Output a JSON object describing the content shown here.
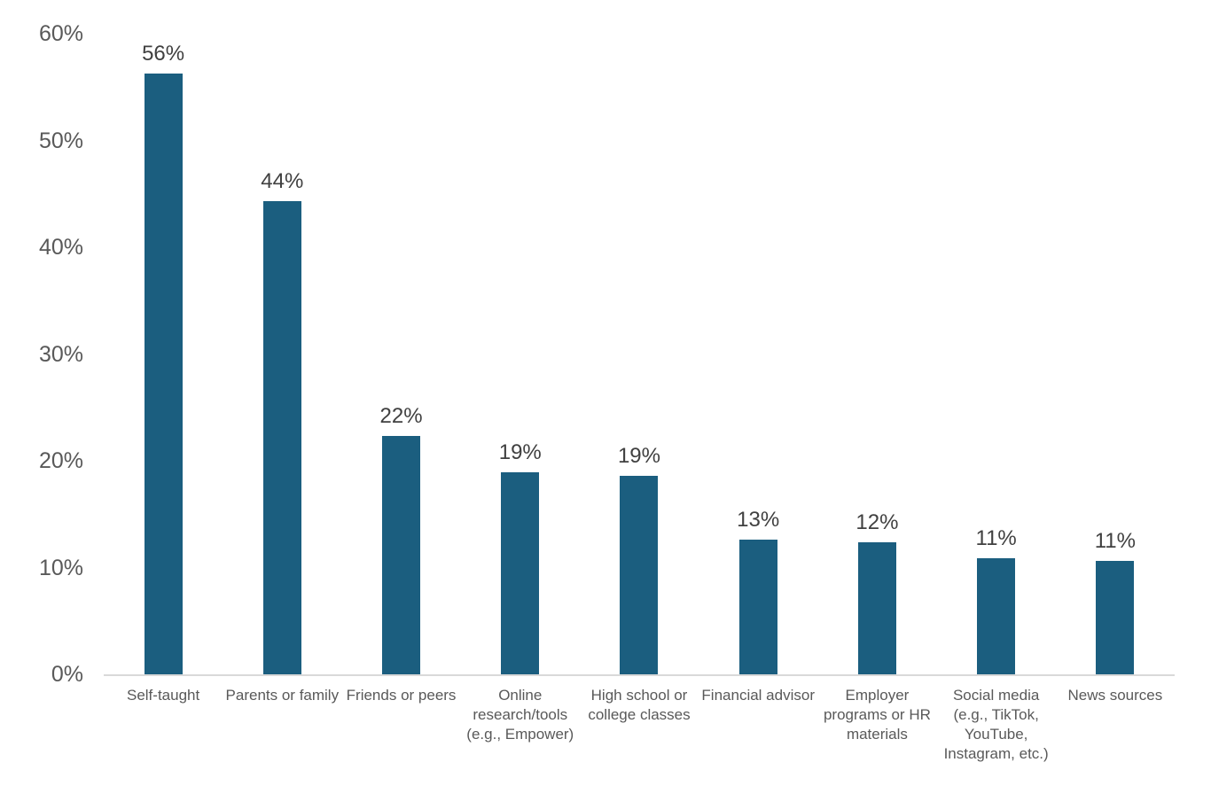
{
  "chart_data": {
    "type": "bar",
    "title": "",
    "xlabel": "",
    "ylabel": "",
    "categories": [
      "Self-taught",
      "Parents or family",
      "Friends or peers",
      "Online research/tools (e.g., Empower)",
      "High school or college classes",
      "Financial advisor",
      "Employer programs or HR materials",
      "Social media (e.g., TikTok, YouTube, Instagram, etc.)",
      "News sources"
    ],
    "values": [
      56,
      44,
      22,
      19,
      19,
      13,
      12,
      11,
      11
    ],
    "value_labels": [
      "56%",
      "44%",
      "22%",
      "19%",
      "19%",
      "13%",
      "12%",
      "11%",
      "11%"
    ],
    "bar_heights_pct_precise": [
      56.3,
      44.3,
      22.3,
      18.9,
      18.6,
      12.6,
      12.4,
      10.9,
      10.6
    ],
    "ylim": [
      0,
      60
    ],
    "y_tick_labels": [
      "60%",
      "50%",
      "40%",
      "30%",
      "20%",
      "10%",
      "0%"
    ],
    "grid": false,
    "legend": false,
    "category_label_lines": [
      [
        "Self-taught"
      ],
      [
        "Parents or family"
      ],
      [
        "Friends or peers"
      ],
      [
        "Online",
        "research/tools",
        "(e.g., Empower)"
      ],
      [
        "High school or",
        "college classes"
      ],
      [
        "Financial advisor"
      ],
      [
        "Employer",
        "programs or HR",
        "materials"
      ],
      [
        "Social media",
        "(e.g., TikTok,",
        "YouTube,",
        "Instagram, etc.)"
      ],
      [
        "News sources"
      ]
    ],
    "colors": {
      "bar": "#1B5E7F",
      "axis_text": "#595959",
      "value_text": "#404040",
      "baseline": "#D9D9D9",
      "background": "#FFFFFF"
    }
  }
}
